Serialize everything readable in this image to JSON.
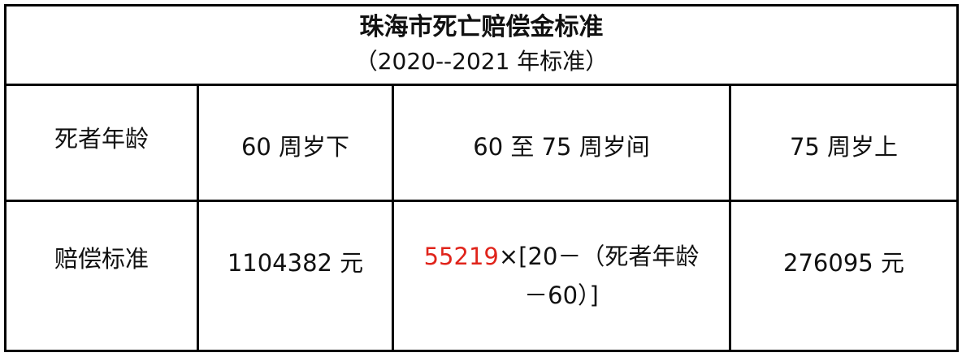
{
  "title": "珠海市死亡赔偿金标准",
  "subtitle": "（2020--2021 年标准）",
  "header_row": [
    "死者年龄",
    "60 周岁下",
    "60 至 75 周岁间",
    "75 周岁上"
  ],
  "standard_row": {
    "label": "赔偿标准",
    "under_60": "1104382 元",
    "between_60_75": {
      "highlight": "55219",
      "highlight_color": "#e0241b",
      "line1_rest": "×[20－（死者年龄",
      "line2": "－60）]"
    },
    "over_75": "276095 元"
  }
}
